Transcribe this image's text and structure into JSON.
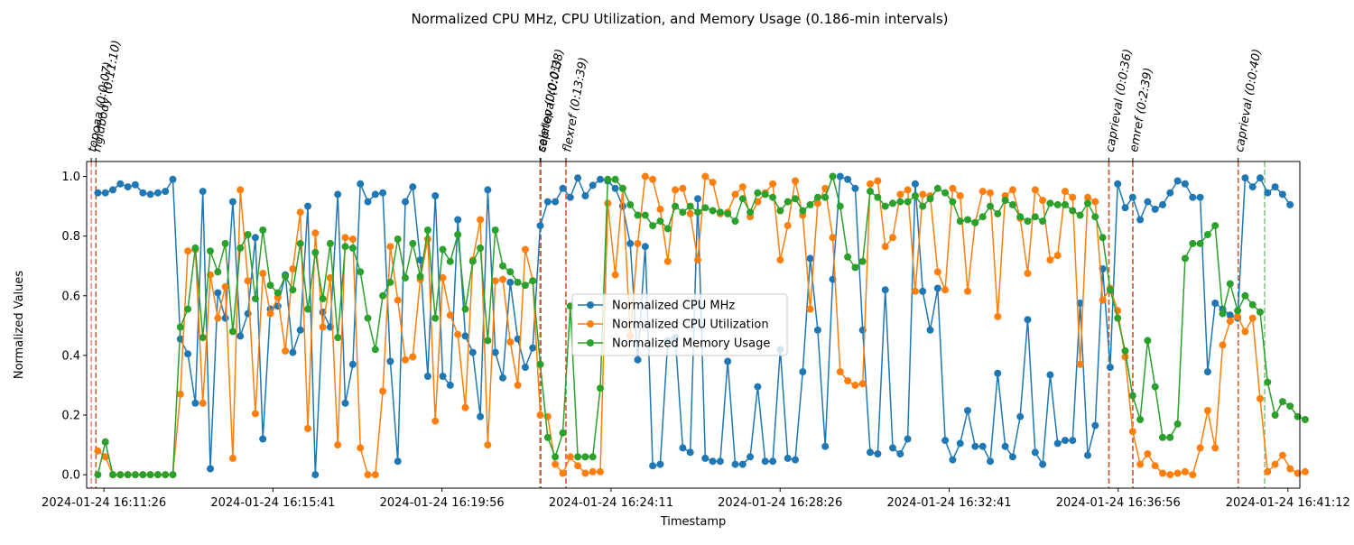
{
  "chart_data": {
    "type": "line",
    "title": "Normalized CPU MHz, CPU Utilization, and Memory Usage (0.186-min intervals)",
    "xlabel": "Timestamp",
    "ylabel": "Normalized Values",
    "x_start": "2024-01-24 16:11:00",
    "x_end": "2024-01-24 16:41:30",
    "ylim": [
      -0.045,
      1.05
    ],
    "y_ticks": [
      "0.0",
      "0.2",
      "0.4",
      "0.6",
      "0.8",
      "1.0"
    ],
    "x_ticks": [
      "2024-01-24 16:11:26",
      "2024-01-24 16:15:41",
      "2024-01-24 16:19:56",
      "2024-01-24 16:24:11",
      "2024-01-24 16:28:26",
      "2024-01-24 16:32:41",
      "2024-01-24 16:36:56",
      "2024-01-24 16:41:12"
    ],
    "legend_position": "center",
    "grid": false,
    "events": [
      {
        "label": "topoaa (0:0:07)",
        "start": "2024-01-24 16:11:07",
        "end": "2024-01-24 16:11:14",
        "start_color": "#f07a7a",
        "end_color": "#c0623c"
      },
      {
        "label": "rigidbody (0:11:10)",
        "start": "2024-01-24 16:11:14",
        "end": "2024-01-24 16:22:24",
        "start_color": "#c0623c",
        "end_color": "#c0623c"
      },
      {
        "label": "seletop (0:0:01)",
        "start": "2024-01-24 16:22:24",
        "end": "2024-01-24 16:22:25",
        "start_color": "#c0623c",
        "end_color": "#c0623c"
      },
      {
        "label": "caprieval (0:0:38)",
        "start": "2024-01-24 16:22:25",
        "end": "2024-01-24 16:23:03",
        "start_color": "#c0623c",
        "end_color": "#d9614a"
      },
      {
        "label": "flexref (0:13:39)",
        "start": "2024-01-24 16:23:03",
        "end": "2024-01-24 16:36:42",
        "start_color": "#d9614a",
        "end_color": "#c0623c"
      },
      {
        "label": "caprieval (0:0:36)",
        "start": "2024-01-24 16:36:42",
        "end": "2024-01-24 16:37:18",
        "start_color": "#c0623c",
        "end_color": "#c0623c"
      },
      {
        "label": "emref (0:2:39)",
        "start": "2024-01-24 16:37:18",
        "end": "2024-01-24 16:39:57",
        "start_color": "#c0623c",
        "end_color": "#c0623c"
      },
      {
        "label": "caprieval (0:0:40)",
        "start": "2024-01-24 16:39:57",
        "end": "2024-01-24 16:40:37",
        "start_color": "#c0623c",
        "end_color": "#7fbf7f"
      }
    ],
    "series": [
      {
        "name": "Normalized CPU MHz",
        "color": "#1f77b4",
        "values": [
          0.945,
          0.945,
          0.955,
          0.975,
          0.965,
          0.972,
          0.945,
          0.94,
          0.945,
          0.95,
          0.99,
          0.455,
          0.405,
          0.24,
          0.95,
          0.02,
          0.61,
          0.525,
          0.915,
          0.465,
          0.54,
          0.795,
          0.12,
          0.555,
          0.565,
          0.67,
          0.41,
          0.485,
          0.9,
          0.0,
          0.545,
          0.495,
          0.94,
          0.24,
          0.37,
          0.975,
          0.915,
          0.94,
          0.945,
          0.38,
          0.045,
          0.915,
          0.965,
          0.72,
          0.33,
          0.935,
          0.33,
          0.3,
          0.855,
          0.465,
          0.41,
          0.195,
          0.955,
          0.41,
          0.325,
          0.645,
          0.455,
          0.36,
          0.425,
          0.835,
          0.915,
          0.915,
          0.96,
          0.93,
          0.995,
          0.935,
          0.97,
          0.99,
          0.985,
          0.96,
          0.9,
          0.775,
          0.385,
          0.765,
          0.03,
          0.035,
          0.45,
          0.46,
          0.09,
          0.075,
          0.925,
          0.055,
          0.045,
          0.045,
          0.38,
          0.035,
          0.035,
          0.06,
          0.295,
          0.045,
          0.045,
          0.42,
          0.055,
          0.05,
          0.345,
          0.725,
          0.485,
          0.095,
          0.655,
          1.0,
          0.99,
          0.96,
          0.485,
          0.075,
          0.07,
          0.62,
          0.09,
          0.07,
          0.12,
          0.975,
          0.615,
          0.485,
          0.625,
          0.115,
          0.05,
          0.105,
          0.215,
          0.095,
          0.095,
          0.045,
          0.34,
          0.095,
          0.06,
          0.195,
          0.52,
          0.075,
          0.035,
          0.335,
          0.105,
          0.115,
          0.115,
          0.575,
          0.065,
          0.165,
          0.69,
          0.36,
          0.975,
          0.895,
          0.93,
          0.855,
          0.915,
          0.89,
          0.905,
          0.945,
          0.985,
          0.975,
          0.93,
          0.93,
          0.345,
          0.575,
          0.555,
          0.535,
          0.525,
          0.995,
          0.965,
          0.995,
          0.945,
          0.965,
          0.94,
          0.905
        ]
      },
      {
        "name": "Normalized CPU Utilization",
        "color": "#ff7f0e",
        "values": [
          0.08,
          0.06,
          0.0,
          0.0,
          0.0,
          0.0,
          0.0,
          0.0,
          0.0,
          0.0,
          0.0,
          0.27,
          0.75,
          0.755,
          0.24,
          0.67,
          0.525,
          0.63,
          0.055,
          0.955,
          0.65,
          0.205,
          0.675,
          0.54,
          0.595,
          0.415,
          0.69,
          0.88,
          0.155,
          0.81,
          0.495,
          0.66,
          0.1,
          0.795,
          0.79,
          0.09,
          0.0,
          0.0,
          0.28,
          0.765,
          0.585,
          0.385,
          0.395,
          0.655,
          0.79,
          0.18,
          0.66,
          0.535,
          0.47,
          0.225,
          0.72,
          0.855,
          0.1,
          0.65,
          0.655,
          0.445,
          0.3,
          0.755,
          0.65,
          0.2,
          0.195,
          0.035,
          0.005,
          0.06,
          0.03,
          0.005,
          0.01,
          0.01,
          0.91,
          0.67,
          0.96,
          0.465,
          0.775,
          1.0,
          0.99,
          0.89,
          0.715,
          0.955,
          0.96,
          0.875,
          0.72,
          1.0,
          0.98,
          0.875,
          0.88,
          0.94,
          0.965,
          0.865,
          0.915,
          0.945,
          0.975,
          0.72,
          0.835,
          0.985,
          0.87,
          0.555,
          0.91,
          0.96,
          0.795,
          0.345,
          0.315,
          0.3,
          0.305,
          0.975,
          0.985,
          0.765,
          0.795,
          0.94,
          0.955,
          0.615,
          0.94,
          0.935,
          0.68,
          0.62,
          0.96,
          0.935,
          0.615,
          0.845,
          0.95,
          0.945,
          0.53,
          0.935,
          0.955,
          0.86,
          0.675,
          0.955,
          0.92,
          0.72,
          0.735,
          0.95,
          0.93,
          0.37,
          0.93,
          0.915,
          0.585,
          0.625,
          0.55,
          0.395,
          0.145,
          0.035,
          0.07,
          0.03,
          0.005,
          0.0,
          0.005,
          0.01,
          0.0,
          0.09,
          0.215,
          0.09,
          0.435,
          0.515,
          0.53,
          0.48,
          0.525,
          0.255,
          0.01,
          0.035,
          0.065,
          0.02,
          0.005,
          0.01
        ]
      },
      {
        "name": "Normalized Memory Usage",
        "color": "#2ca02c",
        "values": [
          0.0,
          0.11,
          0.0,
          0.0,
          0.0,
          0.0,
          0.0,
          0.0,
          0.0,
          0.0,
          0.0,
          0.495,
          0.555,
          0.76,
          0.46,
          0.75,
          0.68,
          0.775,
          0.48,
          0.76,
          0.805,
          0.59,
          0.82,
          0.635,
          0.61,
          0.665,
          0.62,
          0.775,
          0.555,
          0.745,
          0.59,
          0.775,
          0.46,
          0.765,
          0.76,
          0.68,
          0.525,
          0.42,
          0.6,
          0.645,
          0.79,
          0.66,
          0.775,
          0.665,
          0.82,
          0.525,
          0.755,
          0.715,
          0.805,
          0.555,
          0.715,
          0.76,
          0.45,
          0.82,
          0.7,
          0.68,
          0.645,
          0.635,
          0.65,
          0.37,
          0.125,
          0.06,
          0.14,
          0.565,
          0.06,
          0.06,
          0.06,
          0.29,
          0.99,
          0.99,
          0.96,
          0.905,
          0.87,
          0.87,
          0.835,
          0.85,
          0.825,
          0.9,
          0.88,
          0.9,
          0.88,
          0.895,
          0.885,
          0.88,
          0.875,
          0.85,
          0.925,
          0.88,
          0.945,
          0.94,
          0.93,
          0.885,
          0.915,
          0.925,
          0.885,
          0.905,
          0.93,
          0.93,
          1.0,
          0.9,
          0.73,
          0.695,
          0.715,
          0.95,
          0.93,
          0.9,
          0.91,
          0.915,
          0.915,
          0.935,
          0.9,
          0.925,
          0.96,
          0.945,
          0.915,
          0.85,
          0.855,
          0.845,
          0.865,
          0.9,
          0.875,
          0.92,
          0.905,
          0.865,
          0.85,
          0.865,
          0.85,
          0.91,
          0.905,
          0.905,
          0.885,
          0.87,
          0.91,
          0.865,
          0.795,
          0.62,
          0.525,
          0.415,
          0.265,
          0.185,
          0.45,
          0.295,
          0.125,
          0.125,
          0.17,
          0.725,
          0.775,
          0.775,
          0.805,
          0.835,
          0.54,
          0.64,
          0.55,
          0.6,
          0.57,
          0.545,
          0.31,
          0.2,
          0.245,
          0.23,
          0.195,
          0.185
        ]
      }
    ]
  }
}
